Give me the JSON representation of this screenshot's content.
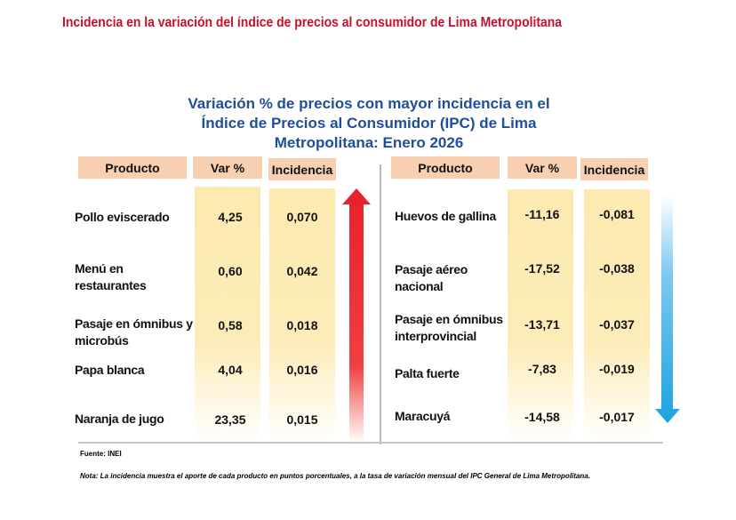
{
  "title": "Incidencia en la variación del índice de precios al consumidor de Lima Metropolitana",
  "subtitle": [
    "Variación % de precios con mayor incidencia en el",
    "Índice de Precios al Consumidor (IPC) de Lima",
    "Metropolitana: Enero 2026"
  ],
  "headers": {
    "producto": "Producto",
    "var": "Var %",
    "incidencia": "Incidencia"
  },
  "left_rows": [
    {
      "producto": "Pollo eviscerado",
      "var": "4,25",
      "incidencia": "0,070"
    },
    {
      "producto": "Menú en restaurantes",
      "var": "0,60",
      "incidencia": "0,042"
    },
    {
      "producto": "Pasaje en ómnibus y microbús",
      "var": "0,58",
      "incidencia": "0,018"
    },
    {
      "producto": "Papa blanca",
      "var": "4,04",
      "incidencia": "0,016"
    },
    {
      "producto": "Naranja de jugo",
      "var": "23,35",
      "incidencia": "0,015"
    }
  ],
  "right_rows": [
    {
      "producto": "Huevos de gallina",
      "var": "-11,16",
      "incidencia": "-0,081"
    },
    {
      "producto": "Pasaje aéreo nacional",
      "var": "-17,52",
      "incidencia": "-0,038"
    },
    {
      "producto": "Pasaje en ómnibus interprovincial",
      "var": "-13,71",
      "incidencia": "-0,037"
    },
    {
      "producto": "Palta fuerte",
      "var": "-7,83",
      "incidencia": "-0,019"
    },
    {
      "producto": "Maracuyá",
      "var": "-14,58",
      "incidencia": "-0,017"
    }
  ],
  "fuente": "Fuente: INEI",
  "nota": "Nota: La incidencia muestra  el aporte de cada producto en puntos porcentuales,  a la tasa de variación mensual  del IPC General de Lima Metropolitana.",
  "colors": {
    "title": "#c8102e",
    "subtitle": "#1f4e9c",
    "header_bg": "#f8cfb0",
    "column_bg": "#fdeab0",
    "up_arrow": "#e8202a",
    "down_arrow": "#1aa3e0"
  },
  "icons": {
    "left": "arrow-up-icon",
    "right": "arrow-down-icon"
  }
}
